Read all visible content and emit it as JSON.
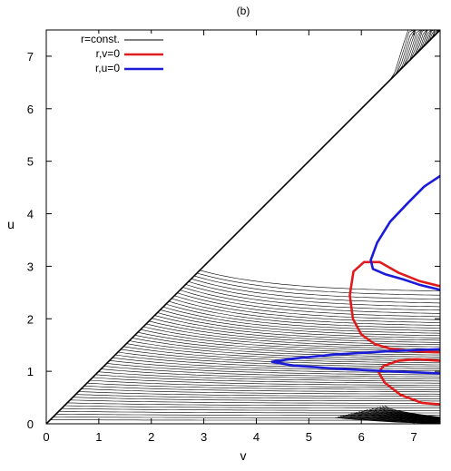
{
  "chart_data": {
    "type": "line",
    "title": "(b)",
    "xlabel": "v",
    "ylabel": "u",
    "xlim": [
      0,
      7.5
    ],
    "ylim": [
      0,
      7.5
    ],
    "xticks": [
      0,
      1,
      2,
      3,
      4,
      5,
      6,
      7
    ],
    "yticks": [
      0,
      1,
      2,
      3,
      4,
      5,
      6,
      7
    ],
    "grid": false,
    "legend_position": "top-left",
    "legend": [
      {
        "label": "r=const.",
        "color": "#000000"
      },
      {
        "label": "r,v=0",
        "color": "#e01b1b"
      },
      {
        "label": "r,u=0",
        "color": "#1b1bd8"
      }
    ],
    "boundary": {
      "x": [
        0,
        7.5
      ],
      "y": [
        0,
        7.5
      ]
    },
    "series": [
      {
        "name": "r,v=0",
        "color": "#e01b1b",
        "segments": [
          {
            "x": [
              7.5,
              7.1,
              6.7,
              6.35,
              6.05,
              5.85,
              5.78,
              5.84,
              6.0,
              6.25,
              6.55,
              6.9,
              7.25,
              7.5
            ],
            "y": [
              2.62,
              2.72,
              2.88,
              3.08,
              3.08,
              2.9,
              2.45,
              2.0,
              1.7,
              1.52,
              1.43,
              1.39,
              1.37,
              1.36
            ]
          },
          {
            "x": [
              7.5,
              7.05,
              6.7,
              6.42,
              6.33,
              6.45,
              6.75,
              7.15,
              7.5
            ],
            "y": [
              1.2,
              1.23,
              1.2,
              1.1,
              0.98,
              0.78,
              0.55,
              0.4,
              0.37
            ]
          }
        ]
      },
      {
        "name": "r,u=0",
        "color": "#1b1bd8",
        "segments": [
          {
            "x": [
              7.5,
              7.2,
              6.9,
              6.55,
              6.3,
              6.18,
              6.22,
              6.45,
              6.8,
              7.1,
              7.5
            ],
            "y": [
              4.72,
              4.52,
              4.22,
              3.85,
              3.45,
              3.12,
              2.95,
              2.85,
              2.75,
              2.65,
              2.55
            ]
          },
          {
            "x": [
              7.5,
              6.5,
              5.5,
              4.7,
              4.3,
              4.7,
              5.5,
              6.5,
              7.5
            ],
            "y": [
              1.42,
              1.38,
              1.32,
              1.24,
              1.18,
              1.11,
              1.05,
              1.0,
              0.96
            ]
          }
        ]
      }
    ]
  }
}
